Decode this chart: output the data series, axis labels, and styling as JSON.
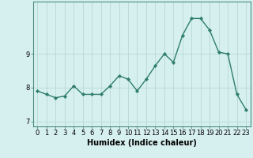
{
  "x": [
    0,
    1,
    2,
    3,
    4,
    5,
    6,
    7,
    8,
    9,
    10,
    11,
    12,
    13,
    14,
    15,
    16,
    17,
    18,
    19,
    20,
    21,
    22,
    23
  ],
  "y": [
    7.9,
    7.8,
    7.7,
    7.75,
    8.05,
    7.8,
    7.8,
    7.8,
    8.05,
    8.35,
    8.25,
    7.9,
    8.25,
    8.65,
    9.0,
    8.75,
    9.55,
    10.05,
    10.05,
    9.7,
    9.05,
    9.0,
    7.8,
    7.35
  ],
  "line_color": "#2e7d6e",
  "marker": "D",
  "marker_size": 2.2,
  "linewidth": 1.0,
  "bg_color": "#d6f0ef",
  "grid_color": "#b8d8d5",
  "xlabel": "Humidex (Indice chaleur)",
  "xlabel_fontsize": 7.0,
  "ylim": [
    6.85,
    10.55
  ],
  "yticks": [
    7,
    8,
    9
  ],
  "ytick_labels": [
    "7",
    "8",
    "9"
  ],
  "xticks": [
    0,
    1,
    2,
    3,
    4,
    5,
    6,
    7,
    8,
    9,
    10,
    11,
    12,
    13,
    14,
    15,
    16,
    17,
    18,
    19,
    20,
    21,
    22,
    23
  ],
  "tick_fontsize": 6.0,
  "spine_color": "#4a8a82",
  "xlim": [
    -0.5,
    23.5
  ]
}
